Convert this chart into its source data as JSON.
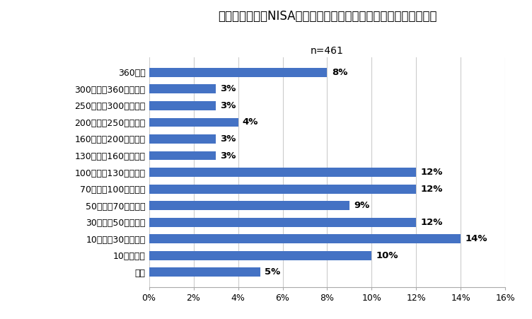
{
  "title": "今年一年間で新NISAを利用して合計いくらを投資する予定ですか",
  "subtitle": "n=461",
  "categories": [
    "未定",
    "10万円未満",
    "10万円～30万円未満",
    "30万円～50万円未満",
    "50万円～70万円未満",
    "70万円～100万円未満",
    "100万円～130万円未満",
    "130万円～160万円未満",
    "160万円～200万円未満",
    "200万円～250万円未満",
    "250万円～300万円未満",
    "300万円～360万円未満",
    "360万円"
  ],
  "values": [
    5,
    10,
    14,
    12,
    9,
    12,
    12,
    3,
    3,
    4,
    3,
    3,
    8
  ],
  "bar_color": "#4472C4",
  "bg_color": "#FFFFFF",
  "plot_bg_color": "#FFFFFF",
  "title_fontsize": 12,
  "subtitle_fontsize": 10,
  "label_fontsize": 9.5,
  "tick_fontsize": 9,
  "ytick_fontsize": 9,
  "xlim": [
    0,
    16
  ],
  "xticks": [
    0,
    2,
    4,
    6,
    8,
    10,
    12,
    14,
    16
  ]
}
